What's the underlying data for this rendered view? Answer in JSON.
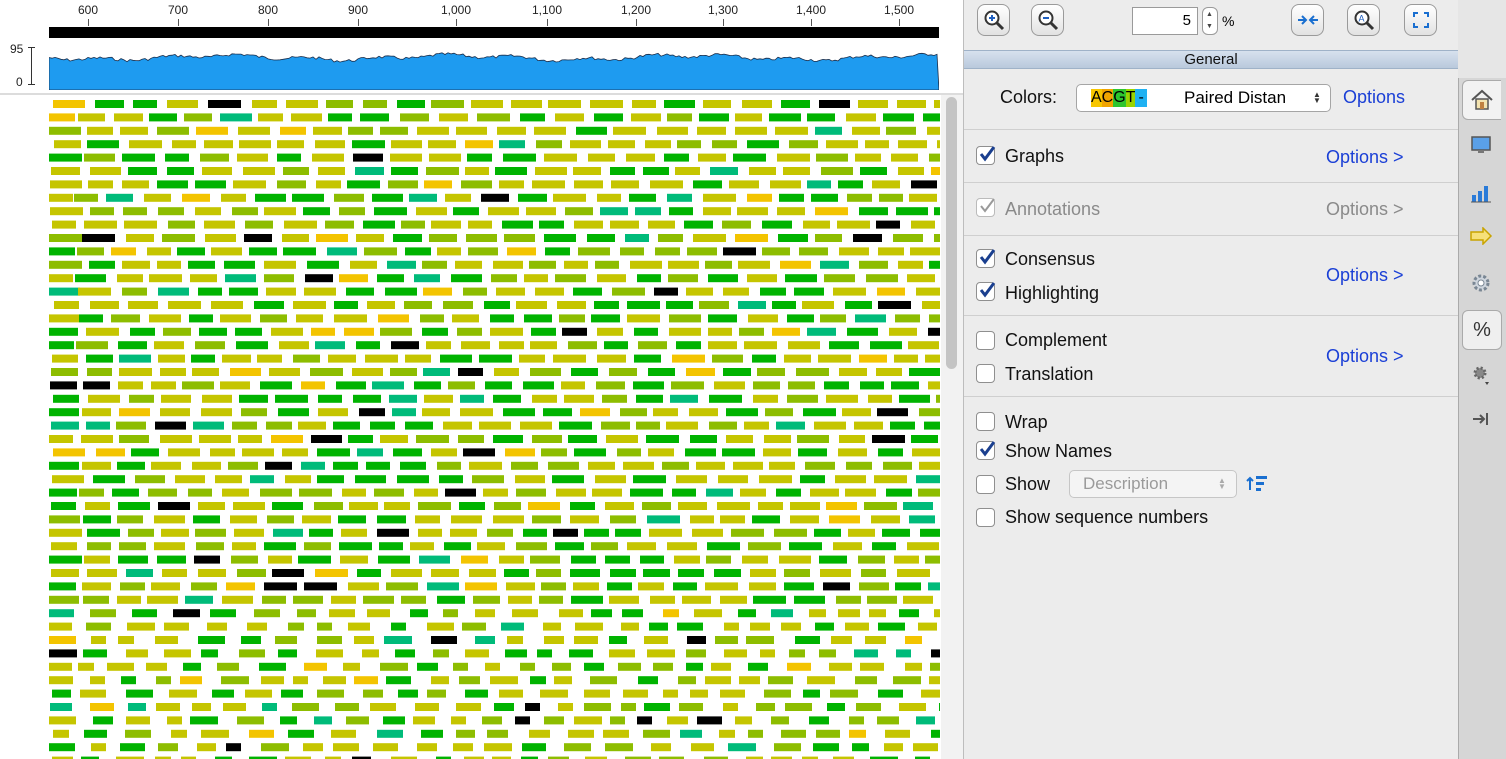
{
  "ruler": {
    "ticks": [
      "600",
      "700",
      "800",
      "900",
      "1,000",
      "1,100",
      "1,200",
      "1,300",
      "1,400",
      "1,500"
    ]
  },
  "coverage_graph": {
    "y_max_label": "95",
    "y_min_label": "0",
    "fill_color": "#1e9bf0"
  },
  "reads": {
    "colors": [
      "#c5c500",
      "#8dbd00",
      "#00b300",
      "#00bb7a",
      "#f3c400",
      "#000000"
    ]
  },
  "toolbar": {
    "zoom_value": "5",
    "zoom_unit": "%"
  },
  "panel": {
    "section_title": "General",
    "colors": {
      "label": "Colors:",
      "swatch_letters": [
        "A",
        "C",
        "G",
        "T",
        "-"
      ],
      "swatch_colors": [
        "#f7c600",
        "#f0a400",
        "#2ec52e",
        "#9ad400",
        "#1fb1f2"
      ],
      "value": "Paired Distan",
      "options_label": "Options"
    },
    "rows": {
      "graphs": {
        "label": "Graphs",
        "checked": true,
        "options": "Options >"
      },
      "annotations": {
        "label": "Annotations",
        "checked": true,
        "disabled": true,
        "options": "Options >"
      },
      "consensus": {
        "label": "Consensus",
        "checked": true
      },
      "highlighting": {
        "label": "Highlighting",
        "checked": true
      },
      "consensus_options": "Options >",
      "complement": {
        "label": "Complement",
        "checked": false
      },
      "translation": {
        "label": "Translation",
        "checked": false
      },
      "complement_options": "Options >",
      "wrap": {
        "label": "Wrap",
        "checked": false
      },
      "show_names": {
        "label": "Show Names",
        "checked": true
      },
      "show": {
        "label": "Show",
        "checked": false
      },
      "description_select": "Description",
      "show_sequence_numbers": {
        "label": "Show sequence numbers",
        "checked": false
      }
    }
  },
  "side_tabs": [
    "home-icon",
    "monitor-icon",
    "bar-chart-icon",
    "arrow-right-icon",
    "gear-icon",
    "percent-icon",
    "gear-dropdown-icon",
    "collapse-right-icon"
  ],
  "side_tab_percent": "%"
}
